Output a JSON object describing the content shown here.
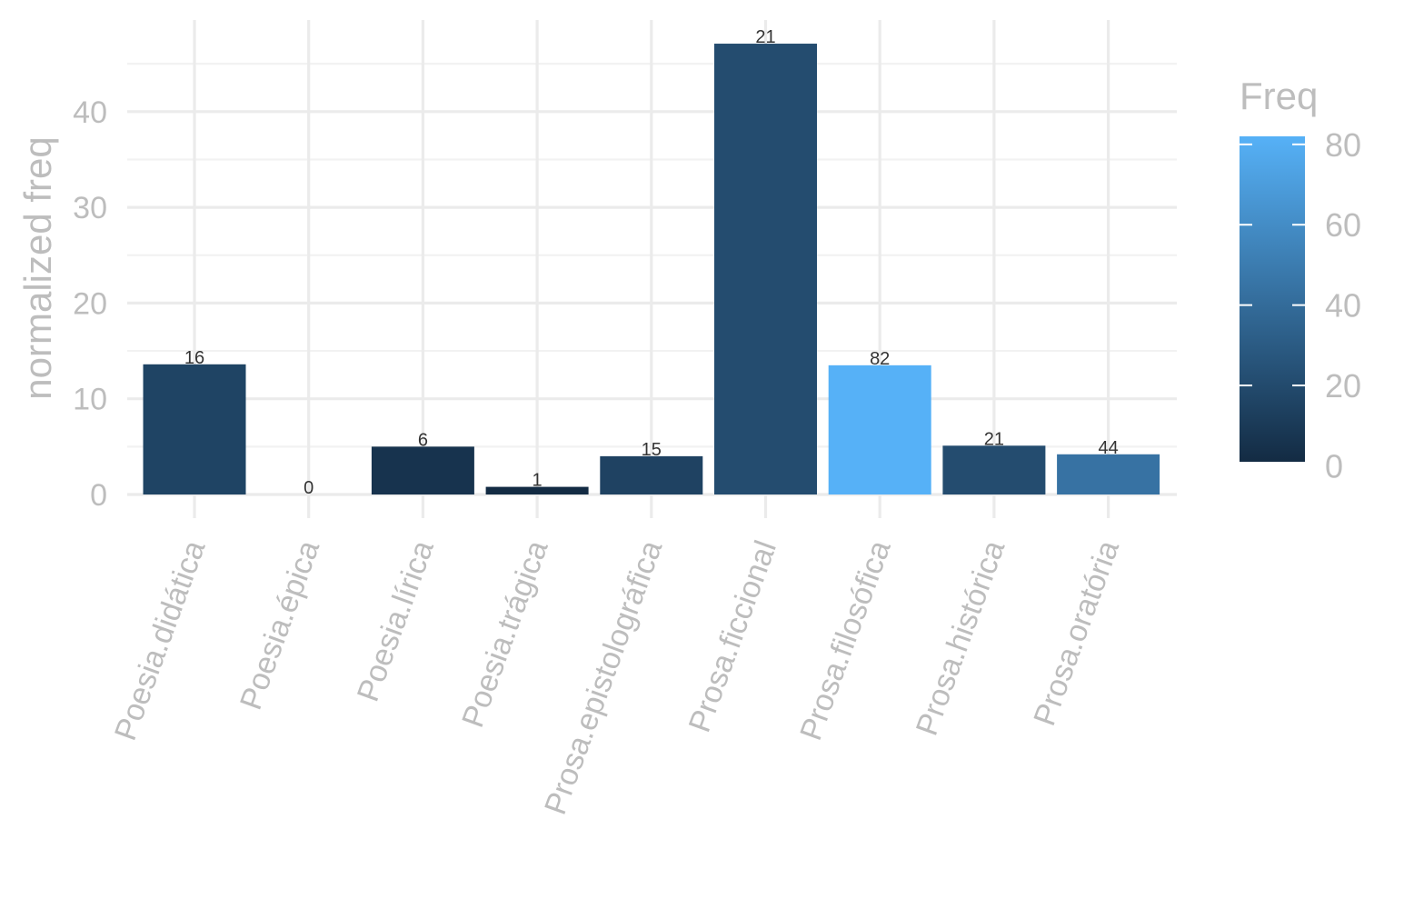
{
  "chart_data": {
    "type": "bar",
    "title": "",
    "xlabel": "",
    "ylabel": "normalized freq",
    "ylim": [
      0,
      49.5
    ],
    "yticks": [
      0,
      10,
      20,
      30,
      40
    ],
    "grid": true,
    "categories": [
      "Poesia.didática",
      "Poesia.épica",
      "Poesia.lírica",
      "Poesia.trágica",
      "Prosa.epistolográfica",
      "Prosa.ficcional",
      "Prosa.filosófica",
      "Prosa.histórica",
      "Prosa.oratória"
    ],
    "values": [
      13.6,
      0,
      5.0,
      0.8,
      4.0,
      47.1,
      13.5,
      5.1,
      4.2
    ],
    "freq": [
      16,
      0,
      6,
      1,
      15,
      21,
      82,
      21,
      44
    ],
    "data_labels": [
      "16",
      "0",
      "6",
      "1",
      "15",
      "21",
      "82",
      "21",
      "44"
    ],
    "fill_scale": {
      "title": "Freq",
      "low_color": "#132B43",
      "high_color": "#56B1F7",
      "limits": [
        1,
        82
      ],
      "ticks": [
        0,
        20,
        40,
        60,
        80
      ],
      "tick_labels": [
        "0",
        "20",
        "40",
        "60",
        "80"
      ]
    },
    "legend_position": "right"
  }
}
